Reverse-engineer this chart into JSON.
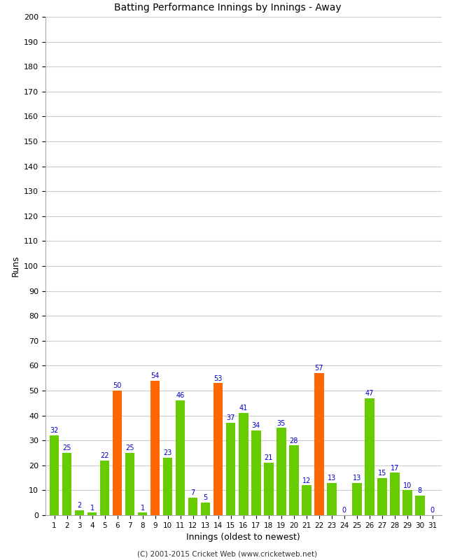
{
  "innings": [
    1,
    2,
    3,
    4,
    5,
    6,
    7,
    8,
    9,
    10,
    11,
    12,
    13,
    14,
    15,
    16,
    17,
    18,
    19,
    20,
    21,
    22,
    23,
    24,
    25,
    26,
    27,
    28,
    29,
    30,
    31
  ],
  "values": [
    32,
    25,
    2,
    1,
    22,
    50,
    25,
    1,
    54,
    23,
    46,
    7,
    5,
    53,
    37,
    41,
    34,
    21,
    35,
    28,
    12,
    57,
    13,
    0,
    13,
    47,
    15,
    17,
    10,
    8,
    0
  ],
  "colors": [
    "#66cc00",
    "#66cc00",
    "#66cc00",
    "#66cc00",
    "#66cc00",
    "#ff6600",
    "#66cc00",
    "#66cc00",
    "#ff6600",
    "#66cc00",
    "#66cc00",
    "#66cc00",
    "#66cc00",
    "#ff6600",
    "#66cc00",
    "#66cc00",
    "#66cc00",
    "#66cc00",
    "#66cc00",
    "#66cc00",
    "#66cc00",
    "#ff6600",
    "#66cc00",
    "#66cc00",
    "#66cc00",
    "#66cc00",
    "#66cc00",
    "#66cc00",
    "#66cc00",
    "#66cc00",
    "#66cc00"
  ],
  "xlabel": "Innings (oldest to newest)",
  "ylabel": "Runs",
  "ylim": [
    0,
    200
  ],
  "yticks": [
    0,
    10,
    20,
    30,
    40,
    50,
    60,
    70,
    80,
    90,
    100,
    110,
    120,
    130,
    140,
    150,
    160,
    170,
    180,
    190,
    200
  ],
  "bg_color": "#ffffff",
  "grid_color": "#cccccc",
  "label_color": "#0000cc",
  "footer": "(C) 2001-2015 Cricket Web (www.cricketweb.net)",
  "bar_width": 0.75
}
